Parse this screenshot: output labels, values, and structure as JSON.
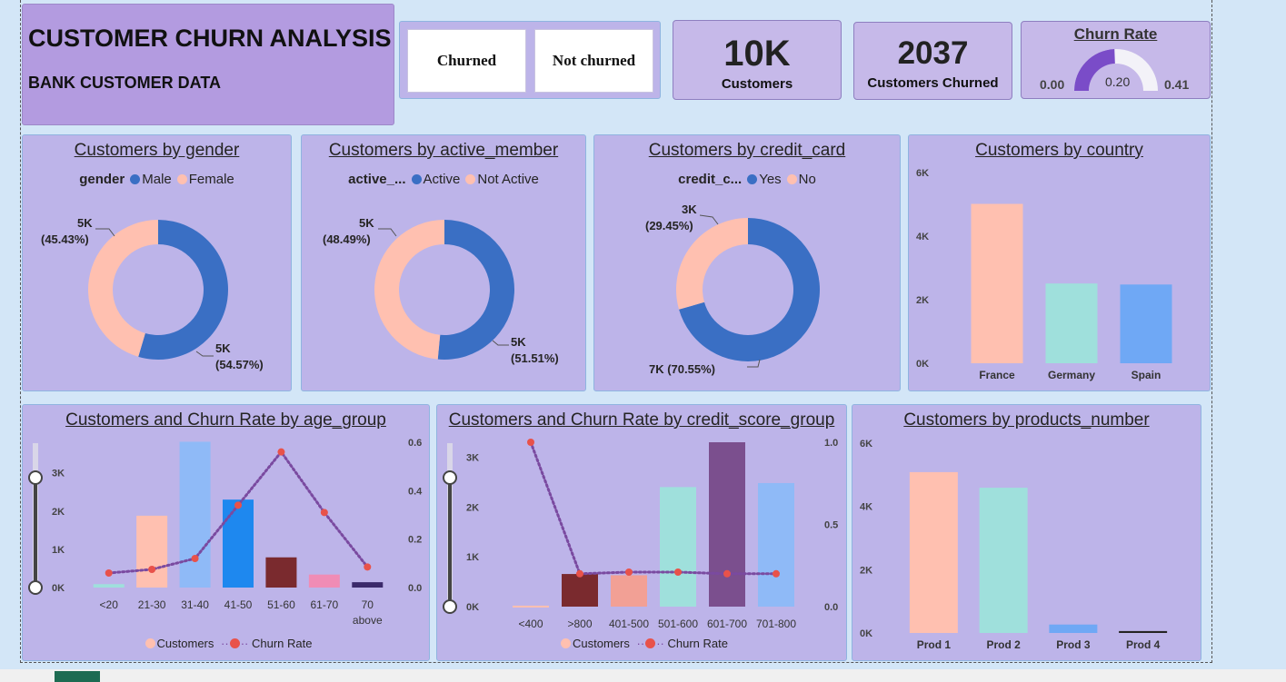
{
  "header": {
    "title": "CUSTOMER CHURN ANALYSIS",
    "subtitle": "BANK CUSTOMER DATA"
  },
  "slicer": {
    "options": [
      "Churned",
      "Not churned"
    ]
  },
  "kpis": {
    "customers_value": "10K",
    "customers_label": "Customers",
    "churned_value": "2037",
    "churned_label": "Customers Churned"
  },
  "gauge": {
    "title": "Churn Rate",
    "min_label": "0.00",
    "max_label": "0.41",
    "value_label": "0.20",
    "min": 0,
    "max": 0.41,
    "value": 0.2
  },
  "colors": {
    "peach": "#ffc0b0",
    "blue": "#3a6fc4",
    "teal": "#9fe0dc",
    "lightblue": "#6fa8f5",
    "purple": "#7b4f8e",
    "churnline": "#7a4aa0",
    "churndot": "#e8524a"
  },
  "gender": {
    "title": "Customers by gender",
    "legend_label": "gender",
    "legend": [
      "Male",
      "Female"
    ],
    "labels": {
      "female_value": "5K",
      "female_pct": "(45.43%)",
      "male_value": "5K",
      "male_pct": "(54.57%)"
    },
    "chart_data": {
      "type": "pie",
      "categories": [
        "Male",
        "Female"
      ],
      "values": [
        54.57,
        45.43
      ]
    }
  },
  "active": {
    "title": "Customers by active_member",
    "legend_label": "active_...",
    "legend": [
      "Active",
      "Not Active"
    ],
    "labels": {
      "notactive_value": "5K",
      "notactive_pct": "(48.49%)",
      "active_value": "5K",
      "active_pct": "(51.51%)"
    },
    "chart_data": {
      "type": "pie",
      "categories": [
        "Active",
        "Not Active"
      ],
      "values": [
        51.51,
        48.49
      ]
    }
  },
  "credit": {
    "title": "Customers by credit_card",
    "legend_label": "credit_c...",
    "legend": [
      "Yes",
      "No"
    ],
    "labels": {
      "no_value": "3K",
      "no_pct": "(29.45%)",
      "yes_label": "7K (70.55%)"
    },
    "chart_data": {
      "type": "pie",
      "categories": [
        "Yes",
        "No"
      ],
      "values": [
        70.55,
        29.45
      ]
    }
  },
  "country": {
    "title": "Customers by country",
    "chart_data": {
      "type": "bar",
      "categories": [
        "France",
        "Germany",
        "Spain"
      ],
      "values": [
        5014,
        2509,
        2477
      ],
      "ylim": [
        0,
        6000
      ],
      "yticks": [
        "0K",
        "2K",
        "4K",
        "6K"
      ]
    }
  },
  "age": {
    "title": "Customers and Churn Rate by age_group",
    "legend": [
      "Customers",
      "Churn Rate"
    ],
    "chart_data": {
      "type": "bar",
      "categories": [
        "<20",
        "21-30",
        "31-40",
        "41-50",
        "51-60",
        "61-70",
        "70 above"
      ],
      "series": [
        {
          "name": "Customers",
          "values": [
            89,
            1879,
            3813,
            2300,
            790,
            340,
            140
          ]
        },
        {
          "name": "Churn Rate",
          "values": [
            0.06,
            0.075,
            0.12,
            0.34,
            0.56,
            0.31,
            0.085
          ]
        }
      ],
      "ylim": [
        0,
        3800
      ],
      "yticks": [
        "0K",
        "1K",
        "2K",
        "3K"
      ],
      "y2lim": [
        0,
        0.6
      ],
      "y2ticks": [
        "0.0",
        "0.2",
        "0.4",
        "0.6"
      ]
    }
  },
  "credit_score": {
    "title": "Customers and Churn Rate by credit_score_group",
    "legend": [
      "Customers",
      "Churn Rate"
    ],
    "chart_data": {
      "type": "bar",
      "categories": [
        "<400",
        ">800",
        "401-500",
        "501-600",
        "601-700",
        "701-800"
      ],
      "series": [
        {
          "name": "Customers",
          "values": [
            19,
            655,
            630,
            2400,
            3300,
            2480
          ]
        },
        {
          "name": "Churn Rate",
          "values": [
            1.0,
            0.2,
            0.21,
            0.21,
            0.2,
            0.2
          ]
        }
      ],
      "ylim": [
        0,
        3300
      ],
      "yticks": [
        "0K",
        "1K",
        "2K",
        "3K"
      ],
      "y2lim": [
        0,
        1.0
      ],
      "y2ticks": [
        "0.0",
        "0.5",
        "1.0"
      ]
    }
  },
  "products": {
    "title": "Customers by products_number",
    "chart_data": {
      "type": "bar",
      "categories": [
        "Prod 1",
        "Prod 2",
        "Prod 3",
        "Prod 4"
      ],
      "values": [
        5084,
        4590,
        266,
        60
      ],
      "ylim": [
        0,
        6000
      ],
      "yticks": [
        "0K",
        "2K",
        "4K",
        "6K"
      ]
    }
  }
}
